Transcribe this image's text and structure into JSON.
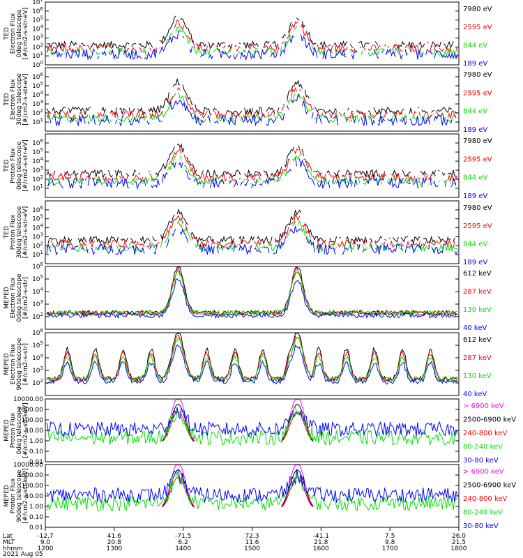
{
  "colors": {
    "black": "#000000",
    "red": "#ff0000",
    "green": "#00e000",
    "blue": "#0000ff",
    "magenta": "#ff00ff"
  },
  "x_axis": {
    "rows": [
      {
        "label": "Lat",
        "values": [
          "-12.7",
          "41.6",
          "-71.5",
          "72.3",
          "-41.1",
          "7.5",
          "26.0"
        ]
      },
      {
        "label": "MLT",
        "values": [
          "9.0",
          "20.8",
          "6.2",
          "11.6",
          "21.8",
          "9.8",
          "21.5"
        ]
      },
      {
        "label": "hhmm",
        "values": [
          "1200",
          "1300",
          "1400",
          "1500",
          "1600",
          "1700",
          "1800"
        ]
      }
    ],
    "date": "2021 Aug 05"
  },
  "chart_data": [
    {
      "type": "line",
      "ylabel": [
        "TED",
        "Electron Flux",
        "0deg telescope",
        "[#/cm2-s-str-eV]"
      ],
      "yscale": "log",
      "ylim": [
        1,
        10000000
      ],
      "ticks": [
        "10^0",
        "10^1",
        "10^2",
        "10^3",
        "10^4",
        "10^5",
        "10^6",
        "10^7"
      ],
      "series": [
        {
          "name": "7980 eV",
          "color": "black"
        },
        {
          "name": "2595 eV",
          "color": "red"
        },
        {
          "name": "844 eV",
          "color": "green"
        },
        {
          "name": "189 eV",
          "color": "blue"
        }
      ]
    },
    {
      "type": "line",
      "ylabel": [
        "TED",
        "Electron Flux",
        "30deg telescope",
        "[#/cm2-s-str-eV]"
      ],
      "yscale": "log",
      "ylim": [
        1,
        10000000
      ],
      "ticks": [
        "10^1",
        "10^2",
        "10^3",
        "10^4",
        "10^5",
        "10^6"
      ],
      "series": [
        {
          "name": "7980 eV",
          "color": "black"
        },
        {
          "name": "2595 eV",
          "color": "red"
        },
        {
          "name": "844 eV",
          "color": "green"
        },
        {
          "name": "189 eV",
          "color": "blue"
        }
      ]
    },
    {
      "type": "line",
      "ylabel": [
        "TED",
        "Proton Flux",
        "0deg telescope",
        "[#/cm2-s-str-eV]"
      ],
      "yscale": "log",
      "ylim": [
        1,
        10000000
      ],
      "ticks": [
        "10^1",
        "10^2",
        "10^3",
        "10^4",
        "10^5",
        "10^6"
      ],
      "series": [
        {
          "name": "7980 eV",
          "color": "black"
        },
        {
          "name": "2595 eV",
          "color": "red"
        },
        {
          "name": "844 eV",
          "color": "green"
        },
        {
          "name": "189 eV",
          "color": "blue"
        }
      ]
    },
    {
      "type": "line",
      "ylabel": [
        "TED",
        "Proton Flux",
        "30deg telescope",
        "[#/cm2-s-str-eV]"
      ],
      "yscale": "log",
      "ylim": [
        1,
        10000000
      ],
      "ticks": [
        "10^1",
        "10^2",
        "10^3",
        "10^4",
        "10^5",
        "10^6"
      ],
      "series": [
        {
          "name": "7980 eV",
          "color": "black"
        },
        {
          "name": "2595 eV",
          "color": "red"
        },
        {
          "name": "844 eV",
          "color": "green"
        },
        {
          "name": "189 eV",
          "color": "blue"
        }
      ]
    },
    {
      "type": "line",
      "ylabel": [
        "MEPED",
        "Electron Flux",
        "0deg telescope",
        "[#/cm2-s-str]"
      ],
      "yscale": "log",
      "ylim": [
        10,
        1000000
      ],
      "ticks": [
        "10^2",
        "10^3",
        "10^4",
        "10^5",
        "10^6"
      ],
      "series": [
        {
          "name": "612 keV",
          "color": "black"
        },
        {
          "name": "287 keV",
          "color": "red"
        },
        {
          "name": "130 keV",
          "color": "green"
        },
        {
          "name": "40 keV",
          "color": "blue"
        }
      ]
    },
    {
      "type": "line",
      "ylabel": [
        "MEPED",
        "Electron Flux",
        "90deg telescope",
        "[#/cm2-s-str]"
      ],
      "yscale": "log",
      "ylim": [
        10,
        1000000
      ],
      "ticks": [
        "10^2",
        "10^3",
        "10^4",
        "10^5",
        "10^6"
      ],
      "series": [
        {
          "name": "612 keV",
          "color": "black"
        },
        {
          "name": "287 keV",
          "color": "red"
        },
        {
          "name": "130 keV",
          "color": "green"
        },
        {
          "name": "40 keV",
          "color": "blue"
        }
      ]
    },
    {
      "type": "line",
      "ylabel": [
        "MEPED",
        "Proton Flux",
        "0deg telescope",
        "[#/cm2-s-str-keV]"
      ],
      "yscale": "log",
      "ylim": [
        0.01,
        10000
      ],
      "ticks": [
        "10000.00",
        "1000.00",
        "100.00",
        "10.00",
        "1.00",
        "0.10",
        "0.01"
      ],
      "series": [
        {
          "name": "> 6900 keV",
          "color": "magenta"
        },
        {
          "name": "2500-6900 keV",
          "color": "black"
        },
        {
          "name": "240-800 keV",
          "color": "red"
        },
        {
          "name": "80-240 keV",
          "color": "green"
        },
        {
          "name": "30-80 keV",
          "color": "blue"
        }
      ]
    },
    {
      "type": "line",
      "ylabel": [
        "MEPED",
        "Proton Flux",
        "90deg telescope",
        "[#/cm2-s-str-keV]"
      ],
      "yscale": "log",
      "ylim": [
        0.01,
        10000
      ],
      "ticks": [
        "10000.00",
        "1000.00",
        "100.00",
        "10.00",
        "1.00",
        "0.10",
        "0.01"
      ],
      "series": [
        {
          "name": "> 6900 keV",
          "color": "magenta"
        },
        {
          "name": "2500-6900 keV",
          "color": "black"
        },
        {
          "name": "240-800 keV",
          "color": "red"
        },
        {
          "name": "80-240 keV",
          "color": "green"
        },
        {
          "name": "30-80 keV",
          "color": "blue"
        }
      ]
    }
  ]
}
